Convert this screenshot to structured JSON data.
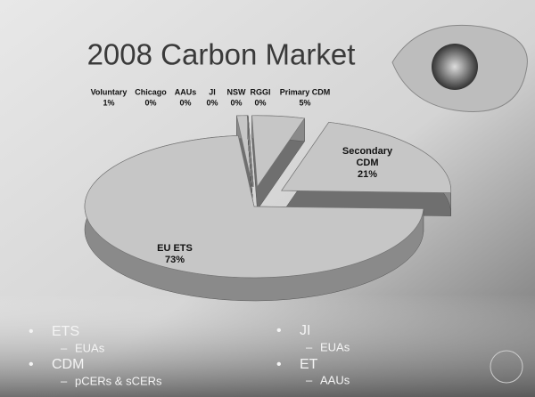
{
  "title": "2008 Carbon Market",
  "chart_data": {
    "type": "pie",
    "categories": [
      "Voluntary",
      "Chicago",
      "AAUs",
      "JI",
      "NSW",
      "RGGI",
      "Primary CDM",
      "Secondary CDM",
      "EU ETS"
    ],
    "values": [
      1,
      0,
      0,
      0,
      0,
      0,
      5,
      21,
      73
    ],
    "value_labels": [
      "1%",
      "0%",
      "0%",
      "0%",
      "0%",
      "0%",
      "5%",
      "21%",
      "73%"
    ],
    "color": "#c6c6c6"
  },
  "bullets": {
    "left": [
      {
        "text": "ETS",
        "sub": "EUAs"
      },
      {
        "text": "CDM",
        "sub": "pCERs & sCERs"
      }
    ],
    "right": [
      {
        "text": "JI",
        "sub": "EUAs"
      },
      {
        "text": "ET",
        "sub": "AAUs"
      }
    ]
  }
}
